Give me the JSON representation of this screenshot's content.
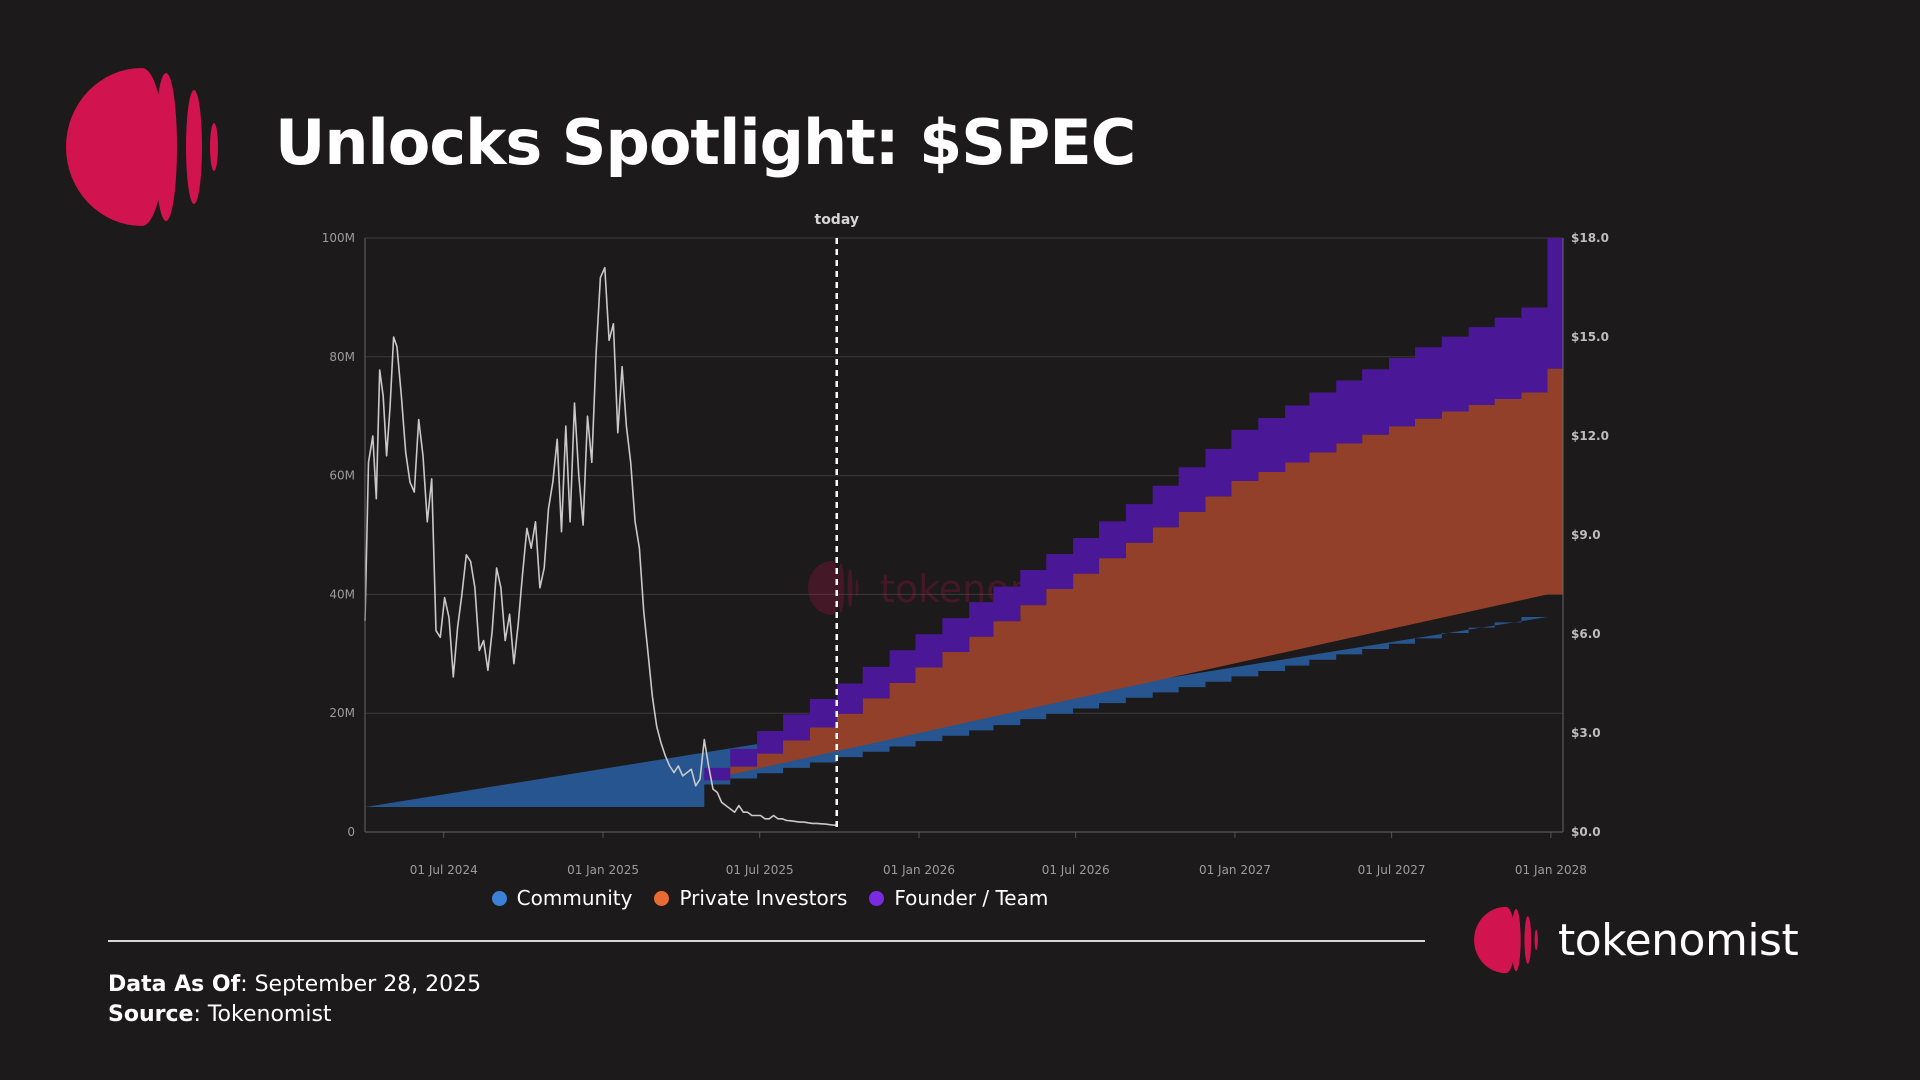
{
  "header": {
    "title": "Unlocks Spotlight: $SPEC"
  },
  "colors": {
    "background": "#1d1a1b",
    "brand": "#d1134f",
    "community": "#26558f",
    "private_investors": "#93402a",
    "founder_team": "#4a1896",
    "price_line": "#c9c9c9"
  },
  "chart_data": {
    "type": "area",
    "subtype": "stepped stacked area with price line overlay",
    "today_label": "today",
    "today_date": "2025-09-28",
    "x_range": [
      "2024-04-01",
      "2028-01-15"
    ],
    "x_tick_labels": [
      "01 Jul 2024",
      "01 Jan 2025",
      "01 Jul 2025",
      "01 Jan 2026",
      "01 Jul 2026",
      "01 Jan 2027",
      "01 Jul 2027",
      "01 Jan 2028"
    ],
    "x_tick_dates": [
      "2024-07-01",
      "2025-01-01",
      "2025-07-01",
      "2026-01-01",
      "2026-07-01",
      "2027-01-01",
      "2027-07-01",
      "2028-01-01"
    ],
    "y_left": {
      "range": [
        0,
        100
      ],
      "unit": "M",
      "tick_values": [
        0,
        20,
        40,
        60,
        80,
        100
      ],
      "tick_labels": [
        "0",
        "20M",
        "40M",
        "60M",
        "80M",
        "100M"
      ]
    },
    "y_right": {
      "range": [
        0,
        18
      ],
      "unit": "$",
      "tick_values": [
        0,
        3,
        6,
        9,
        12,
        15,
        18
      ],
      "tick_labels": [
        "$0.0",
        "$3.0",
        "$6.0",
        "$9.0",
        "$12.0",
        "$15.0",
        "$18.0"
      ]
    },
    "series": [
      {
        "name": "Community",
        "dates": [
          "2024-04-01",
          "2025-04-28",
          "2025-05-28",
          "2025-06-28",
          "2025-07-28",
          "2025-08-28",
          "2025-09-28",
          "2025-10-28",
          "2025-11-28",
          "2025-12-28",
          "2026-01-28",
          "2026-02-28",
          "2026-03-28",
          "2026-04-28",
          "2026-05-28",
          "2026-06-28",
          "2026-07-28",
          "2026-08-28",
          "2026-09-28",
          "2026-10-28",
          "2026-11-28",
          "2026-12-28",
          "2027-01-28",
          "2027-02-28",
          "2027-03-28",
          "2027-04-28",
          "2027-05-28",
          "2027-06-28",
          "2027-07-28",
          "2027-08-28",
          "2027-09-28",
          "2027-10-28",
          "2027-11-28"
        ],
        "values": [
          4.2,
          8.0,
          9.0,
          9.9,
          10.8,
          11.7,
          12.6,
          13.5,
          14.4,
          15.3,
          16.2,
          17.1,
          18.0,
          19.0,
          19.9,
          20.8,
          21.7,
          22.6,
          23.5,
          24.4,
          25.3,
          26.2,
          27.1,
          28.0,
          29.0,
          29.9,
          30.8,
          31.7,
          32.6,
          33.5,
          34.4,
          35.3,
          36.2
        ],
        "final_value": 40.0,
        "final_date": "2027-12-28"
      },
      {
        "name": "Private Investors",
        "dates": [
          "2025-04-28",
          "2025-05-28",
          "2025-06-28",
          "2025-07-28",
          "2025-08-28",
          "2025-09-28",
          "2025-10-28",
          "2025-11-28",
          "2025-12-28",
          "2026-01-28",
          "2026-02-28",
          "2026-03-28",
          "2026-04-28",
          "2026-05-28",
          "2026-06-28",
          "2026-07-28",
          "2026-08-28",
          "2026-09-28",
          "2026-10-28",
          "2026-11-28",
          "2026-12-28",
          "2027-01-28",
          "2027-02-28",
          "2027-03-28",
          "2027-04-28",
          "2027-05-28",
          "2027-06-28",
          "2027-07-28",
          "2027-08-28",
          "2027-09-28",
          "2027-10-28",
          "2027-11-28",
          "2027-12-28"
        ],
        "values": [
          0.7,
          2.0,
          3.3,
          4.6,
          5.9,
          7.3,
          9.0,
          10.7,
          12.4,
          14.1,
          15.8,
          17.5,
          19.2,
          21.0,
          22.7,
          24.4,
          26.1,
          27.8,
          29.5,
          31.2,
          32.9,
          33.5,
          34.2,
          34.9,
          35.5,
          36.1,
          36.6,
          37.0,
          37.3,
          37.5,
          37.6,
          37.8,
          37.9
        ],
        "final_value": 38.0
      },
      {
        "name": "Founder / Team",
        "dates": [
          "2025-04-28",
          "2025-05-28",
          "2025-06-28",
          "2025-07-28",
          "2025-08-28",
          "2025-09-28",
          "2025-10-28",
          "2025-11-28",
          "2025-12-28",
          "2026-01-28",
          "2026-02-28",
          "2026-03-28",
          "2026-04-28",
          "2026-05-28",
          "2026-06-28",
          "2026-07-28",
          "2026-08-28",
          "2026-09-28",
          "2026-10-28",
          "2026-11-28",
          "2026-12-28",
          "2027-01-28",
          "2027-02-28",
          "2027-03-28",
          "2027-04-28",
          "2027-05-28",
          "2027-06-28",
          "2027-07-28",
          "2027-08-28",
          "2027-09-28",
          "2027-10-28",
          "2027-11-28",
          "2027-12-28"
        ],
        "values": [
          2.1,
          3.0,
          3.8,
          4.4,
          4.8,
          5.1,
          5.3,
          5.5,
          5.6,
          5.7,
          5.8,
          5.8,
          5.9,
          5.9,
          6.0,
          6.2,
          6.5,
          7.0,
          7.5,
          8.0,
          8.6,
          9.1,
          9.6,
          10.1,
          10.6,
          11.0,
          11.5,
          12.0,
          12.6,
          13.1,
          13.7,
          14.3,
          18.0
        ],
        "final_value": 22.0
      },
      {
        "name": "Price (USD)",
        "axis": "right",
        "dates": [
          "2024-04-01",
          "2024-04-05",
          "2024-04-10",
          "2024-04-14",
          "2024-04-18",
          "2024-04-22",
          "2024-04-26",
          "2024-04-30",
          "2024-05-04",
          "2024-05-08",
          "2024-05-13",
          "2024-05-18",
          "2024-05-23",
          "2024-05-28",
          "2024-06-02",
          "2024-06-07",
          "2024-06-12",
          "2024-06-17",
          "2024-06-22",
          "2024-06-27",
          "2024-07-02",
          "2024-07-07",
          "2024-07-12",
          "2024-07-17",
          "2024-07-22",
          "2024-07-27",
          "2024-08-01",
          "2024-08-06",
          "2024-08-11",
          "2024-08-16",
          "2024-08-21",
          "2024-08-26",
          "2024-08-31",
          "2024-09-05",
          "2024-09-10",
          "2024-09-15",
          "2024-09-20",
          "2024-09-25",
          "2024-09-30",
          "2024-10-05",
          "2024-10-10",
          "2024-10-15",
          "2024-10-20",
          "2024-10-25",
          "2024-10-30",
          "2024-11-04",
          "2024-11-09",
          "2024-11-14",
          "2024-11-19",
          "2024-11-24",
          "2024-11-29",
          "2024-12-04",
          "2024-12-09",
          "2024-12-14",
          "2024-12-19",
          "2024-12-24",
          "2024-12-29",
          "2025-01-03",
          "2025-01-08",
          "2025-01-13",
          "2025-01-18",
          "2025-01-23",
          "2025-01-28",
          "2025-02-02",
          "2025-02-07",
          "2025-02-12",
          "2025-02-17",
          "2025-02-22",
          "2025-02-27",
          "2025-03-04",
          "2025-03-09",
          "2025-03-14",
          "2025-03-19",
          "2025-03-24",
          "2025-03-29",
          "2025-04-03",
          "2025-04-08",
          "2025-04-13",
          "2025-04-18",
          "2025-04-23",
          "2025-04-28",
          "2025-05-03",
          "2025-05-08",
          "2025-05-13",
          "2025-05-18",
          "2025-05-23",
          "2025-05-28",
          "2025-06-02",
          "2025-06-07",
          "2025-06-12",
          "2025-06-17",
          "2025-06-22",
          "2025-06-27",
          "2025-07-02",
          "2025-07-07",
          "2025-07-12",
          "2025-07-17",
          "2025-07-22",
          "2025-07-27",
          "2025-08-01",
          "2025-08-06",
          "2025-08-11",
          "2025-08-16",
          "2025-08-21",
          "2025-08-26",
          "2025-08-31",
          "2025-09-05",
          "2025-09-10",
          "2025-09-15",
          "2025-09-20",
          "2025-09-28"
        ],
        "values": [
          6.4,
          11.2,
          12.0,
          10.1,
          14.0,
          13.2,
          11.4,
          12.9,
          15.0,
          14.7,
          13.2,
          11.5,
          10.6,
          10.3,
          12.5,
          11.4,
          9.4,
          10.7,
          6.1,
          5.9,
          7.1,
          6.5,
          4.7,
          6.2,
          7.2,
          8.4,
          8.2,
          7.4,
          5.5,
          5.8,
          4.9,
          6.1,
          8.0,
          7.4,
          5.8,
          6.6,
          5.1,
          6.3,
          7.8,
          9.2,
          8.6,
          9.4,
          7.4,
          8.0,
          9.8,
          10.6,
          11.9,
          9.1,
          12.3,
          9.4,
          13.0,
          10.8,
          9.3,
          12.6,
          11.2,
          14.5,
          16.8,
          17.1,
          14.9,
          15.4,
          12.1,
          14.1,
          12.3,
          11.2,
          9.4,
          8.6,
          6.7,
          5.4,
          4.1,
          3.2,
          2.7,
          2.3,
          2.0,
          1.8,
          2.0,
          1.7,
          1.8,
          1.9,
          1.4,
          1.6,
          2.8,
          2.0,
          1.3,
          1.2,
          0.9,
          0.8,
          0.7,
          0.6,
          0.8,
          0.6,
          0.6,
          0.5,
          0.5,
          0.5,
          0.4,
          0.4,
          0.5,
          0.4,
          0.4,
          0.35,
          0.34,
          0.32,
          0.3,
          0.3,
          0.28,
          0.26,
          0.26,
          0.25,
          0.24,
          0.22,
          0.2
        ]
      }
    ],
    "legend": [
      "Community",
      "Private Investors",
      "Founder / Team"
    ],
    "legend_position": "bottom-center",
    "watermark": "tokenomist",
    "grid": true
  },
  "legend": {
    "community": "Community",
    "private_investors": "Private Investors",
    "founder_team": "Founder / Team"
  },
  "footer": {
    "data_as_of_label": "Data As Of",
    "data_as_of_value": ": September 28, 2025",
    "source_label": "Source",
    "source_value": ": Tokenomist"
  },
  "brand": {
    "wordmark": "tokenomist"
  }
}
